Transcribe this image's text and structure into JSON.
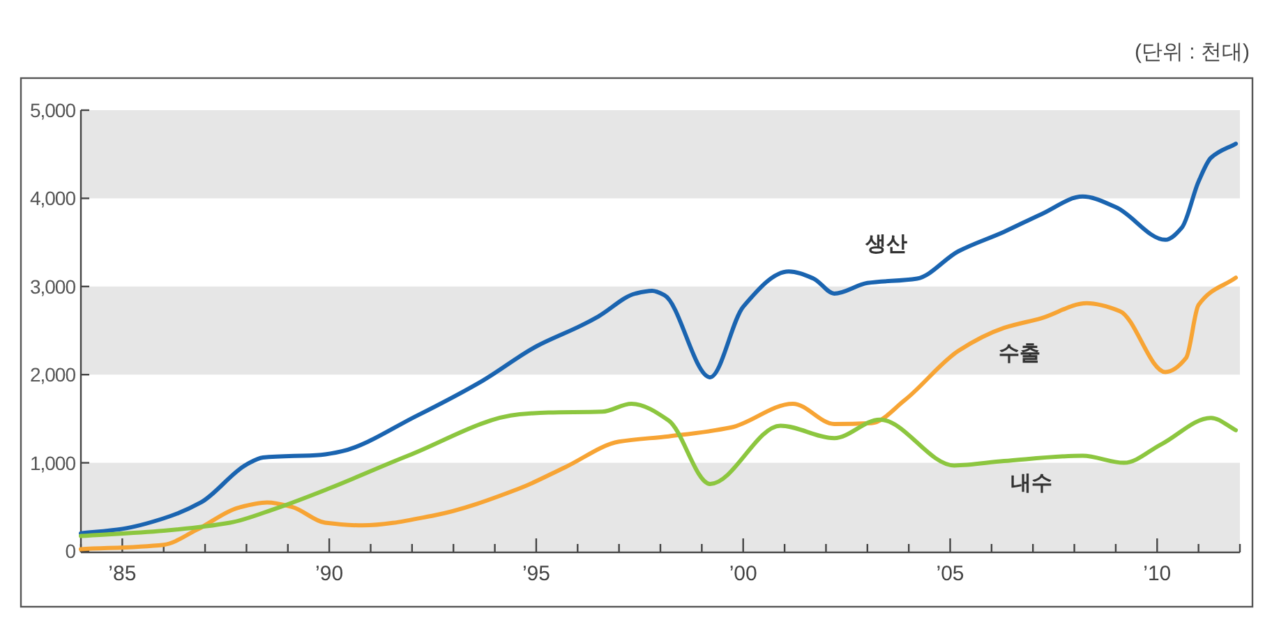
{
  "chart_data": {
    "type": "line",
    "annotations": [
      "(단위 : 천대)"
    ],
    "xlim": [
      1984,
      2012
    ],
    "ylim": [
      0,
      5000
    ],
    "xticks": [
      {
        "value": 1984,
        "label": null
      },
      {
        "value": 1985,
        "label": "’85"
      },
      {
        "value": 1986,
        "label": null
      },
      {
        "value": 1987,
        "label": null
      },
      {
        "value": 1988,
        "label": null
      },
      {
        "value": 1989,
        "label": null
      },
      {
        "value": 1990,
        "label": "’90"
      },
      {
        "value": 1991,
        "label": null
      },
      {
        "value": 1992,
        "label": null
      },
      {
        "value": 1993,
        "label": null
      },
      {
        "value": 1994,
        "label": null
      },
      {
        "value": 1995,
        "label": "’95"
      },
      {
        "value": 1996,
        "label": null
      },
      {
        "value": 1997,
        "label": null
      },
      {
        "value": 1998,
        "label": null
      },
      {
        "value": 1999,
        "label": null
      },
      {
        "value": 2000,
        "label": "’00"
      },
      {
        "value": 2001,
        "label": null
      },
      {
        "value": 2002,
        "label": null
      },
      {
        "value": 2003,
        "label": null
      },
      {
        "value": 2004,
        "label": null
      },
      {
        "value": 2005,
        "label": "’05"
      },
      {
        "value": 2006,
        "label": null
      },
      {
        "value": 2007,
        "label": null
      },
      {
        "value": 2008,
        "label": null
      },
      {
        "value": 2009,
        "label": null
      },
      {
        "value": 2010,
        "label": "’10"
      },
      {
        "value": 2011,
        "label": null
      },
      {
        "value": 2012,
        "label": null
      }
    ],
    "yticks": [
      {
        "value": 0,
        "label": "0"
      },
      {
        "value": 1000,
        "label": "1,000"
      },
      {
        "value": 2000,
        "label": "2,000"
      },
      {
        "value": 3000,
        "label": "3,000"
      },
      {
        "value": 4000,
        "label": "4,000"
      },
      {
        "value": 5000,
        "label": "5,000"
      }
    ],
    "bands": [
      {
        "axis": "y",
        "from": 0,
        "to": 1000,
        "color": "#e6e6e6"
      },
      {
        "axis": "y",
        "from": 2000,
        "to": 3000,
        "color": "#e6e6e6"
      },
      {
        "axis": "y",
        "from": 4000,
        "to": 5000,
        "color": "#e6e6e6"
      }
    ],
    "series": [
      {
        "name": "생산",
        "color": "#1a64b0",
        "x": [
          1984,
          1985,
          1986,
          1986.9,
          1988,
          1988.4,
          1989.8,
          1990.3,
          1992.1,
          1993.7,
          1995,
          1996.1,
          1996.5,
          1997.4,
          1997.8,
          1998.1,
          1999.2,
          2000,
          2001.1,
          2001.7,
          2002.2,
          2003,
          2004.2,
          2005.2,
          2006.3,
          2007.2,
          2008.2,
          2009,
          2010.2,
          2010.6,
          2011,
          2011.3,
          2011.9
        ],
        "values": [
          200,
          250,
          370,
          550,
          980,
          1060,
          1090,
          1130,
          1530,
          1930,
          2320,
          2560,
          2660,
          2920,
          2950,
          2900,
          1970,
          2770,
          3170,
          3090,
          2920,
          3040,
          3090,
          3400,
          3620,
          3820,
          4020,
          3900,
          3530,
          3670,
          4190,
          4460,
          4620
        ]
      },
      {
        "name": "수출",
        "color": "#f7a434",
        "x": [
          1984,
          1986,
          1986.8,
          1987.8,
          1988.5,
          1989.1,
          1989.9,
          1990.8,
          1992.5,
          1994.6,
          1995.7,
          1997,
          1998.2,
          1999.7,
          2001.2,
          2002.2,
          2003.1,
          2003.9,
          2005.2,
          2006.3,
          2007.2,
          2008.3,
          2009.1,
          2010.2,
          2010.7,
          2011,
          2011.9
        ],
        "values": [
          20,
          70,
          240,
          490,
          550,
          500,
          320,
          290,
          400,
          710,
          950,
          1240,
          1300,
          1400,
          1670,
          1440,
          1450,
          1710,
          2270,
          2530,
          2640,
          2810,
          2720,
          2030,
          2190,
          2790,
          3100
        ]
      },
      {
        "name": "내수",
        "color": "#8cc63f",
        "x": [
          1984,
          1986,
          1987.6,
          1988.7,
          1990,
          1991.9,
          1994.6,
          1995.3,
          1996.6,
          1997.3,
          1998.2,
          1999.2,
          2000.9,
          2002.2,
          2003.3,
          2005.1,
          2006.3,
          2008.2,
          2009.2,
          2010.1,
          2011.3,
          2011.9
        ],
        "values": [
          170,
          230,
          320,
          480,
          710,
          1080,
          1550,
          1570,
          1580,
          1670,
          1480,
          760,
          1420,
          1280,
          1490,
          970,
          1020,
          1080,
          1000,
          1210,
          1510,
          1370
        ]
      }
    ]
  }
}
